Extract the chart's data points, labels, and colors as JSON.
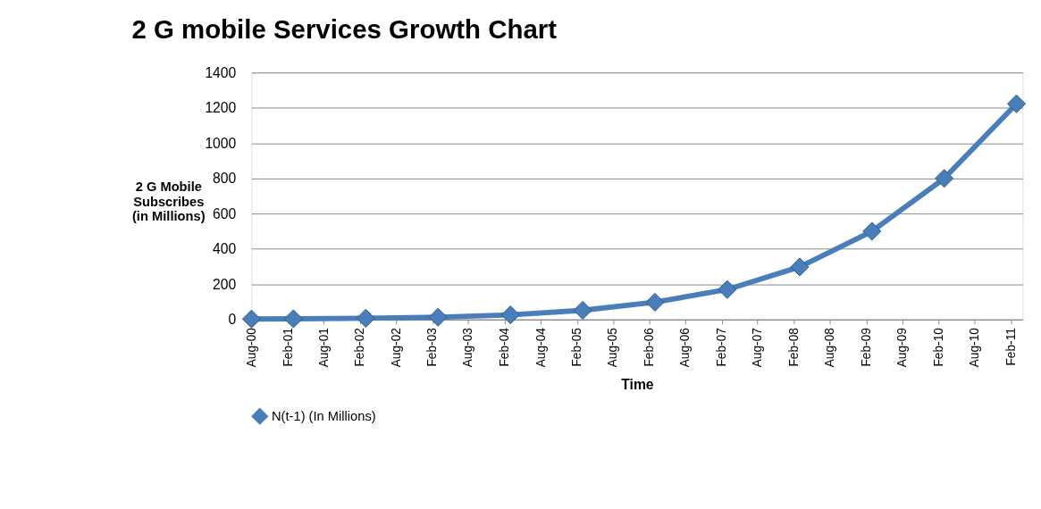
{
  "chart_data": {
    "type": "line",
    "title": "2 G mobile Services Growth Chart",
    "xlabel": "Time",
    "ylabel": "2 G Mobile\nSubscribes\n(in Millions)",
    "x": [
      "2000-08",
      "2001-03",
      "2002-03",
      "2003-03",
      "2004-03",
      "2005-03",
      "2006-03",
      "2007-03",
      "2008-03",
      "2009-03",
      "2010-03",
      "2011-03"
    ],
    "series": [
      {
        "name": "N(t-1) (In Millions)",
        "color": "#4a7ebb",
        "values": [
          3,
          4,
          7,
          13,
          26,
          52,
          98,
          170,
          298,
          500,
          800,
          1223
        ]
      }
    ],
    "xlim": [
      "2000-08",
      "2011-04"
    ],
    "xticks": [
      {
        "value": "2000-08",
        "label": "Aug-00"
      },
      {
        "value": "2001-02",
        "label": "Feb-01"
      },
      {
        "value": "2001-08",
        "label": "Aug-01"
      },
      {
        "value": "2002-02",
        "label": "Feb-02"
      },
      {
        "value": "2002-08",
        "label": "Aug-02"
      },
      {
        "value": "2003-02",
        "label": "Feb-03"
      },
      {
        "value": "2003-08",
        "label": "Aug-03"
      },
      {
        "value": "2004-02",
        "label": "Feb-04"
      },
      {
        "value": "2004-08",
        "label": "Aug-04"
      },
      {
        "value": "2005-02",
        "label": "Feb-05"
      },
      {
        "value": "2005-08",
        "label": "Aug-05"
      },
      {
        "value": "2006-02",
        "label": "Feb-06"
      },
      {
        "value": "2006-08",
        "label": "Aug-06"
      },
      {
        "value": "2007-02",
        "label": "Feb-07"
      },
      {
        "value": "2007-08",
        "label": "Aug-07"
      },
      {
        "value": "2008-02",
        "label": "Feb-08"
      },
      {
        "value": "2008-08",
        "label": "Aug-08"
      },
      {
        "value": "2009-02",
        "label": "Feb-09"
      },
      {
        "value": "2009-08",
        "label": "Aug-09"
      },
      {
        "value": "2010-02",
        "label": "Feb-10"
      },
      {
        "value": "2010-08",
        "label": "Aug-10"
      },
      {
        "value": "2011-02",
        "label": "Feb-11"
      }
    ],
    "ylim": [
      0,
      1400
    ],
    "yticks": [
      0,
      200,
      400,
      600,
      800,
      1000,
      1200,
      1400
    ],
    "grid": "y",
    "legend": "bottom",
    "marker": "diamond",
    "line_style": "solid"
  }
}
